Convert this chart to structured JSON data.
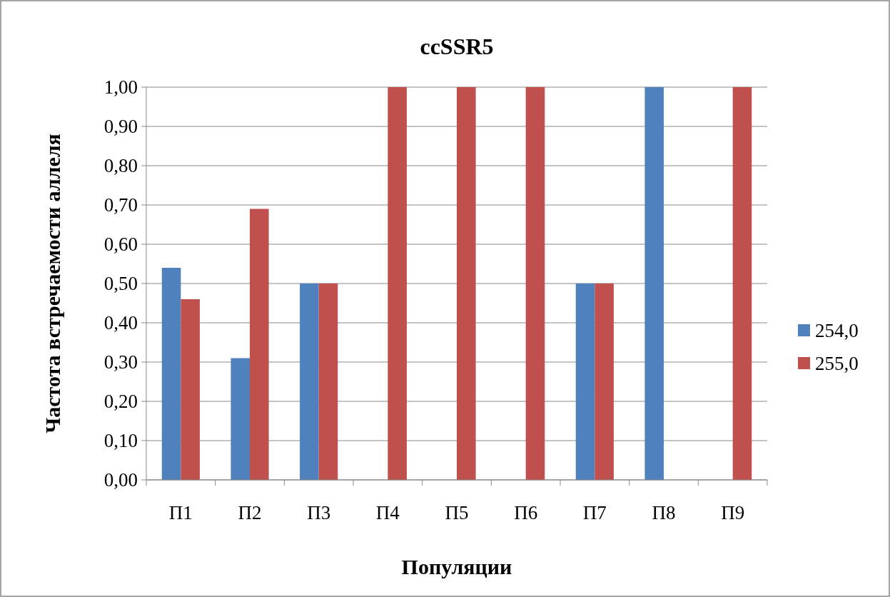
{
  "chart_data": {
    "type": "bar",
    "title": "ccSSR5",
    "xlabel": "Популяции",
    "ylabel": "Частота встречаемости аллеля",
    "categories": [
      "П1",
      "П2",
      "П3",
      "П4",
      "П5",
      "П6",
      "П7",
      "П8",
      "П9"
    ],
    "series": [
      {
        "name": "254,0",
        "color": "#4f81bd",
        "values": [
          0.54,
          0.31,
          0.5,
          0,
          0,
          0,
          0.5,
          1,
          0
        ]
      },
      {
        "name": "255,0",
        "color": "#c0504d",
        "values": [
          0.46,
          0.69,
          0.5,
          1,
          1,
          1,
          0.5,
          0,
          1
        ]
      }
    ],
    "ylim": [
      0,
      1
    ],
    "yticks": [
      {
        "value": 0,
        "label": "0,00"
      },
      {
        "value": 0.1,
        "label": "0,10"
      },
      {
        "value": 0.2,
        "label": "0,20"
      },
      {
        "value": 0.3,
        "label": "0,30"
      },
      {
        "value": 0.4,
        "label": "0,40"
      },
      {
        "value": 0.5,
        "label": "0,50"
      },
      {
        "value": 0.6,
        "label": "0,60"
      },
      {
        "value": 0.7,
        "label": "0,70"
      },
      {
        "value": 0.8,
        "label": "0,80"
      },
      {
        "value": 0.9,
        "label": "0,90"
      },
      {
        "value": 1,
        "label": "1,00"
      }
    ],
    "grid": "y",
    "legend": "right"
  }
}
